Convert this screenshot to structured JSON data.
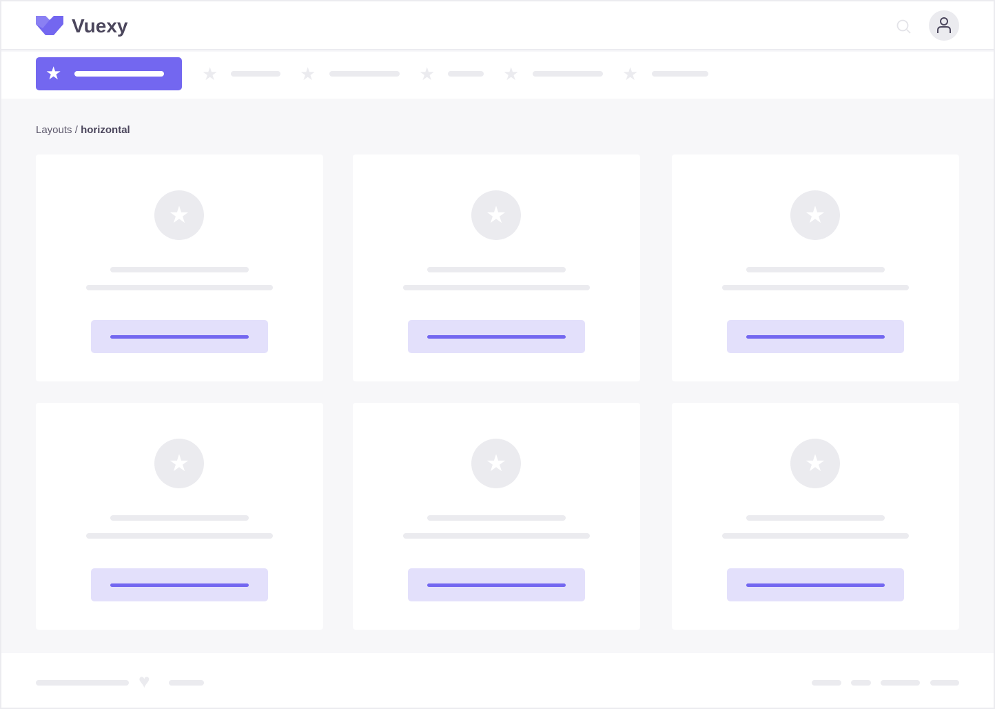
{
  "brand": {
    "name": "Vuexy",
    "accent": "#7367f0"
  },
  "header": {
    "search_icon": "search-icon",
    "user_icon": "user-icon"
  },
  "nav": {
    "items": [
      {
        "icon": "star-icon",
        "active": true
      },
      {
        "icon": "star-icon"
      },
      {
        "icon": "star-icon"
      },
      {
        "icon": "star-icon"
      },
      {
        "icon": "star-icon"
      },
      {
        "icon": "star-icon"
      }
    ]
  },
  "breadcrumb": {
    "parent": "Layouts",
    "separator": " / ",
    "current": "horizontal"
  },
  "cards": [
    {
      "icon": "star-icon"
    },
    {
      "icon": "star-icon"
    },
    {
      "icon": "star-icon"
    },
    {
      "icon": "star-icon"
    },
    {
      "icon": "star-icon"
    },
    {
      "icon": "star-icon"
    }
  ],
  "footer": {
    "icon": "heart-icon"
  }
}
